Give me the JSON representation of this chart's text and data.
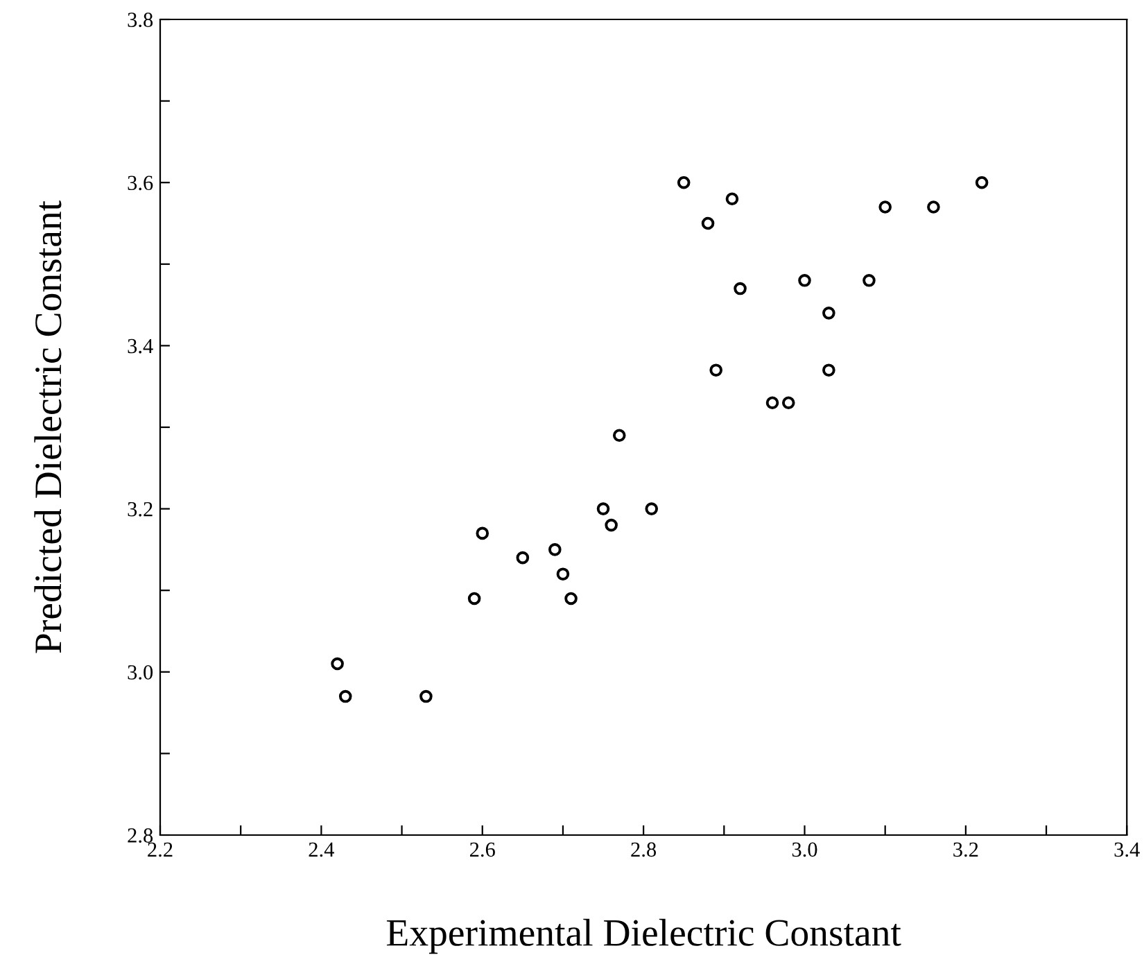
{
  "chart_data": {
    "type": "scatter",
    "xlabel": "Experimental Dielectric Constant",
    "ylabel": "Predicted Dielectric Constant",
    "x": [
      2.85,
      2.91,
      2.88,
      3.22,
      3.1,
      3.16,
      2.92,
      3.0,
      3.08,
      3.03,
      2.89,
      3.03,
      2.96,
      2.98,
      2.77,
      2.6,
      2.75,
      2.81,
      2.76,
      2.65,
      2.69,
      2.7,
      2.71,
      2.59,
      2.42,
      2.43,
      2.53
    ],
    "series": [
      {
        "color": "#000000",
        "values": [
          3.6,
          3.58,
          3.55,
          3.6,
          3.57,
          3.57,
          3.47,
          3.48,
          3.48,
          3.44,
          3.37,
          3.37,
          3.33,
          3.33,
          3.29,
          3.17,
          3.2,
          3.2,
          3.18,
          3.14,
          3.15,
          3.12,
          3.09,
          3.09,
          3.01,
          2.97,
          2.97
        ]
      }
    ],
    "marker": "circle",
    "xlim": [
      2.2,
      3.4
    ],
    "ylim": [
      2.8,
      3.8
    ],
    "xticks": [
      2.2,
      {
        "value": 2.3,
        "label": null
      },
      2.4,
      {
        "value": 2.5,
        "label": null
      },
      2.6,
      {
        "value": 2.7,
        "label": null
      },
      2.8,
      {
        "value": 2.9,
        "label": null
      },
      {
        "value": 3.0,
        "label": "3.0"
      },
      {
        "value": 3.1,
        "label": null
      },
      3.2,
      {
        "value": 3.3,
        "label": null
      },
      3.4
    ],
    "yticks": [
      2.8,
      {
        "value": 2.9,
        "label": null
      },
      {
        "value": 3.0,
        "label": "3.0"
      },
      {
        "value": 3.1,
        "label": null
      },
      3.2,
      {
        "value": 3.3,
        "label": null
      },
      3.4,
      {
        "value": 3.5,
        "label": null
      },
      3.6,
      {
        "value": 3.7,
        "label": null
      },
      3.8
    ],
    "grid": false
  }
}
